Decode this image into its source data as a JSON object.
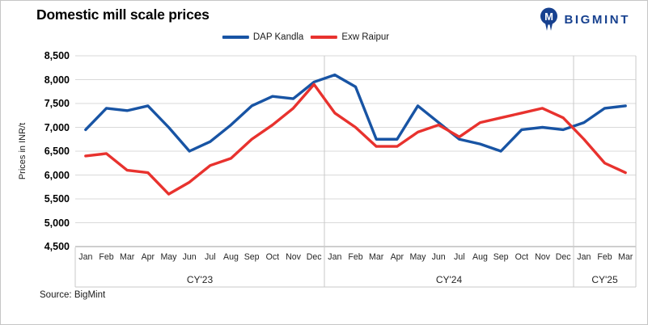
{
  "title": "Domestic mill scale prices",
  "source": "Source: BigMint",
  "logo": {
    "text": "BIGMINT",
    "color": "#17418f"
  },
  "legend": [
    {
      "label": "DAP Kandla",
      "color": "#1854a4"
    },
    {
      "label": "Exw Raipur",
      "color": "#e8322e"
    }
  ],
  "y_axis": {
    "title": "Prices in INR/t",
    "tick_labels": [
      "8,500",
      "8,000",
      "7,500",
      "7,000",
      "6,500",
      "6,000",
      "5,500",
      "5,000",
      "4,500"
    ]
  },
  "chart_data": {
    "type": "line",
    "title": "Domestic mill scale prices",
    "ylabel": "Prices in INR/t",
    "ylim": [
      4500,
      8500
    ],
    "ytick_step": 500,
    "grid": true,
    "legend_position": "top",
    "x_months": [
      "Jan",
      "Feb",
      "Mar",
      "Apr",
      "May",
      "Jun",
      "Jul",
      "Aug",
      "Sep",
      "Oct",
      "Nov",
      "Dec",
      "Jan",
      "Feb",
      "Mar",
      "Apr",
      "May",
      "Jun",
      "Jul",
      "Aug",
      "Sep",
      "Oct",
      "Nov",
      "Dec",
      "Jan",
      "Feb",
      "Mar"
    ],
    "year_groups": [
      {
        "label": "CY'23",
        "count": 12
      },
      {
        "label": "CY'24",
        "count": 12
      },
      {
        "label": "CY'25",
        "count": 3
      }
    ],
    "series": [
      {
        "name": "DAP Kandla",
        "color": "#1854a4",
        "values": [
          6950,
          7400,
          7350,
          7450,
          7000,
          6500,
          6700,
          7050,
          7450,
          7650,
          7600,
          7950,
          8100,
          7850,
          6750,
          6750,
          7450,
          7100,
          6750,
          6650,
          6500,
          6950,
          7000,
          6950,
          7100,
          7400,
          7450
        ]
      },
      {
        "name": "Exw Raipur",
        "color": "#e8322e",
        "values": [
          6400,
          6450,
          6100,
          6050,
          5600,
          5850,
          6200,
          6350,
          6750,
          7050,
          7400,
          7900,
          7300,
          7000,
          6600,
          6600,
          6900,
          7050,
          6800,
          7100,
          7200,
          7300,
          7400,
          7200,
          6750,
          6250,
          6050
        ]
      }
    ]
  }
}
